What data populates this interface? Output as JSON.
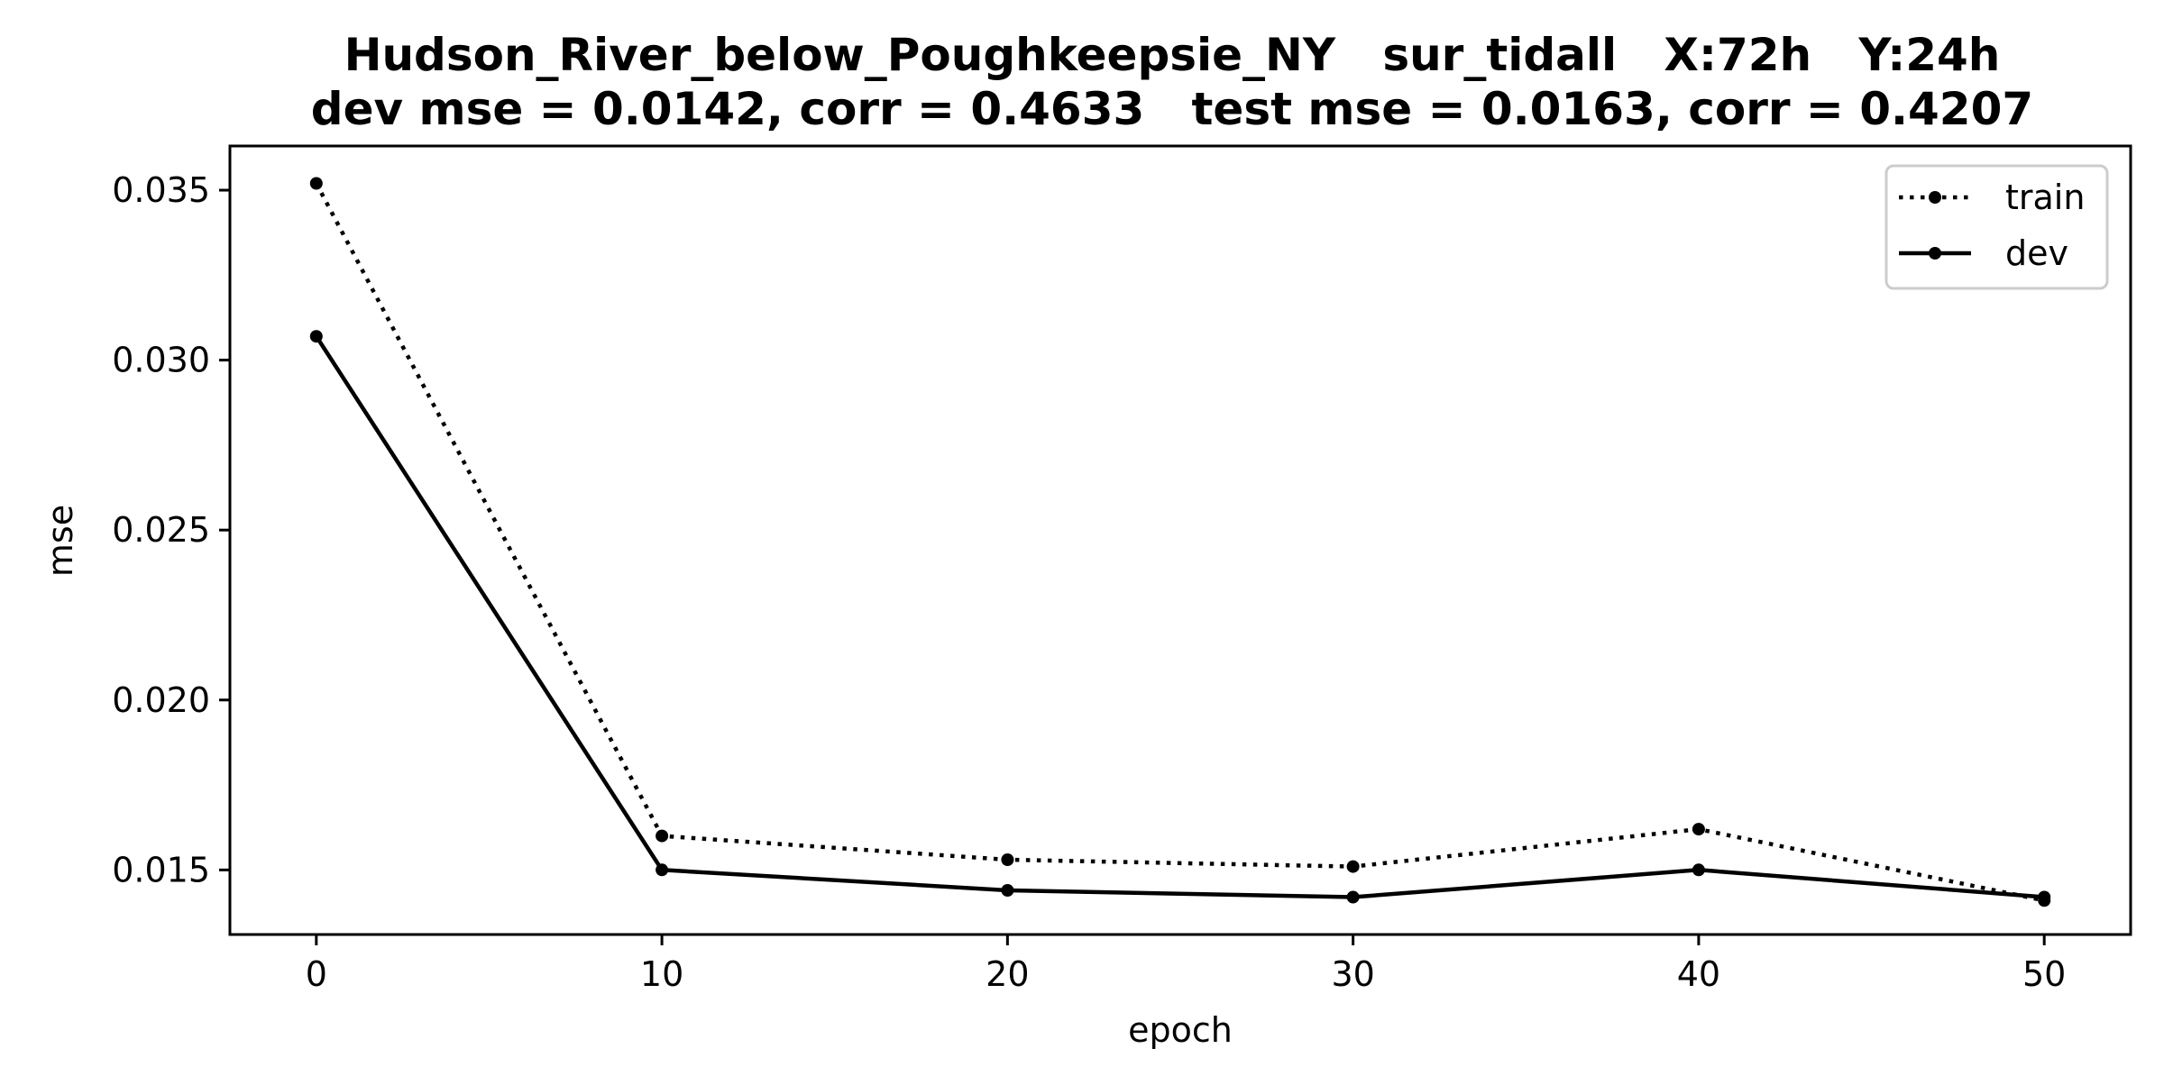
{
  "chart_data": {
    "type": "line",
    "title": "Hudson_River_below_Poughkeepsie_NY   sur_tidall   X:72h   Y:24h",
    "subtitle": "dev mse = 0.0142, corr = 0.4633   test mse = 0.0163, corr = 0.4207",
    "xlabel": "epoch",
    "ylabel": "mse",
    "x": [
      0,
      10,
      20,
      30,
      40,
      50
    ],
    "xlim": [
      -2.5,
      52.5
    ],
    "ylim": [
      0.0131,
      0.0363
    ],
    "xticks": [
      0,
      10,
      20,
      30,
      40,
      50
    ],
    "xtick_labels": [
      "0",
      "10",
      "20",
      "30",
      "40",
      "50"
    ],
    "yticks": [
      0.015,
      0.02,
      0.025,
      0.03,
      0.035
    ],
    "ytick_labels": [
      "0.015",
      "0.020",
      "0.025",
      "0.030",
      "0.035"
    ],
    "grid": false,
    "legend_position": "top-right",
    "series": [
      {
        "name": "train",
        "style": "dotted",
        "color": "#000000",
        "values": [
          0.0352,
          0.016,
          0.0153,
          0.0151,
          0.0162,
          0.0141
        ]
      },
      {
        "name": "dev",
        "style": "solid",
        "color": "#000000",
        "values": [
          0.0307,
          0.015,
          0.0144,
          0.0142,
          0.015,
          0.0142
        ]
      }
    ]
  }
}
